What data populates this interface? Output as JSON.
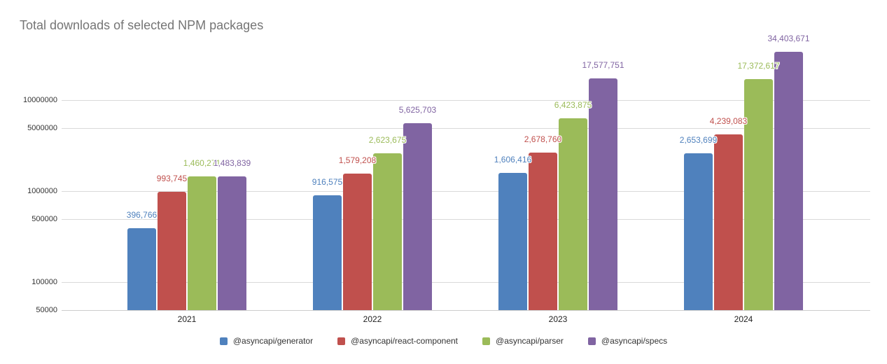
{
  "title": "Total downloads of selected NPM packages",
  "chart_data": {
    "type": "bar",
    "title": "Total downloads of selected NPM packages",
    "xlabel": "",
    "ylabel": "",
    "categories": [
      "2021",
      "2022",
      "2023",
      "2024"
    ],
    "series": [
      {
        "name": "@asyncapi/generator",
        "color": "#4f81bd",
        "values": [
          396766,
          916575,
          1606416,
          2653699
        ]
      },
      {
        "name": "@asyncapi/react-component",
        "color": "#c0504d",
        "values": [
          993745,
          1579208,
          2678760,
          4239083
        ]
      },
      {
        "name": "@asyncapi/parser",
        "color": "#9bbb59",
        "values": [
          1460271,
          2623675,
          6423875,
          17372617
        ]
      },
      {
        "name": "@asyncapi/specs",
        "color": "#8064a2",
        "values": [
          1483839,
          5625703,
          17577751,
          34403671
        ]
      }
    ],
    "value_labels": [
      [
        "396,766",
        "916,575",
        "1,606,416",
        "2,653,699"
      ],
      [
        "993,745",
        "1,579,208",
        "2,678,760",
        "4,239,083"
      ],
      [
        "1,460,271",
        "2,623,675",
        "6,423,875",
        "17,372,617"
      ],
      [
        "1,483,839",
        "5,625,703",
        "17,577,751",
        "34,403,671"
      ]
    ],
    "y_axis": {
      "scale": "log",
      "ticks": [
        10000000,
        5000000,
        1000000,
        500000,
        100000,
        50000
      ],
      "tick_labels": [
        "10000000",
        "5000000",
        "1000000",
        "500000",
        "100000",
        "50000"
      ],
      "min": 50000,
      "max": 40000000
    },
    "grid": true,
    "legend_position": "bottom",
    "background_color": "#ffffff",
    "title_color": "#757575",
    "gridline_color": "#d9d9d9"
  }
}
